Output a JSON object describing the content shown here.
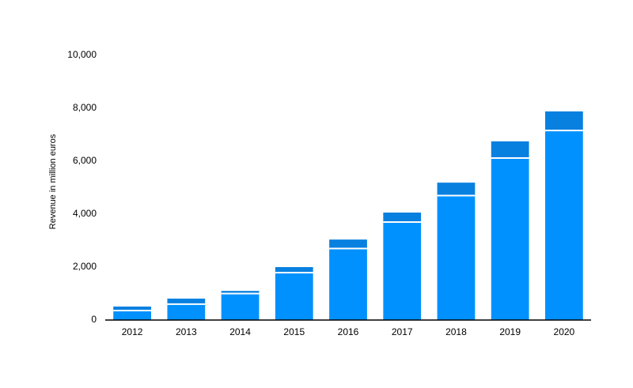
{
  "chart_data": {
    "type": "stacked-bar",
    "y_label": "Revenue in million euros",
    "categories": [
      "2012",
      "2013",
      "2014",
      "2015",
      "2016",
      "2017",
      "2018",
      "2019",
      "2020"
    ],
    "series": [
      {
        "color": "#0091ff",
        "values": [
          360,
          600,
          1000,
          1790,
          2700,
          3700,
          4700,
          6120,
          7160
        ]
      },
      {
        "color": "#0880e0",
        "values": [
          150,
          210,
          100,
          210,
          340,
          360,
          490,
          630,
          720
        ]
      }
    ],
    "ylim": [
      0,
      10000
    ],
    "yticks": [
      0,
      {
        "value": 2000,
        "label": "2,000"
      },
      {
        "value": 4000,
        "label": "4,000"
      },
      {
        "value": 6000,
        "label": "6,000"
      },
      {
        "value": 8000,
        "label": "8,000"
      },
      {
        "value": 10000,
        "label": "10,000"
      }
    ],
    "grid": false
  }
}
